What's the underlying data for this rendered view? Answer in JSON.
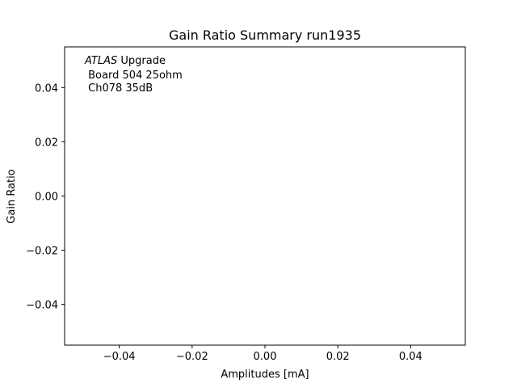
{
  "chart_data": {
    "type": "scatter",
    "title": "Gain Ratio Summary run1935",
    "xlabel": "Amplitudes [mA]",
    "ylabel": "Gain Ratio",
    "xlim": [
      -0.055,
      0.055
    ],
    "ylim": [
      -0.055,
      0.055
    ],
    "xticks": [
      -0.04,
      -0.02,
      0.0,
      0.02,
      0.04
    ],
    "xtick_labels": [
      "−0.04",
      "−0.02",
      "0.00",
      "0.02",
      "0.04"
    ],
    "yticks": [
      -0.04,
      -0.02,
      0.0,
      0.02,
      0.04
    ],
    "ytick_labels": [
      "−0.04",
      "−0.02",
      "0.00",
      "0.02",
      "0.04"
    ],
    "grid": false,
    "series": [],
    "annotation": {
      "atlas": "ATLAS",
      "upgrade": " Upgrade",
      "board": " Board 504 25ohm",
      "channel": " Ch078 35dB"
    }
  }
}
